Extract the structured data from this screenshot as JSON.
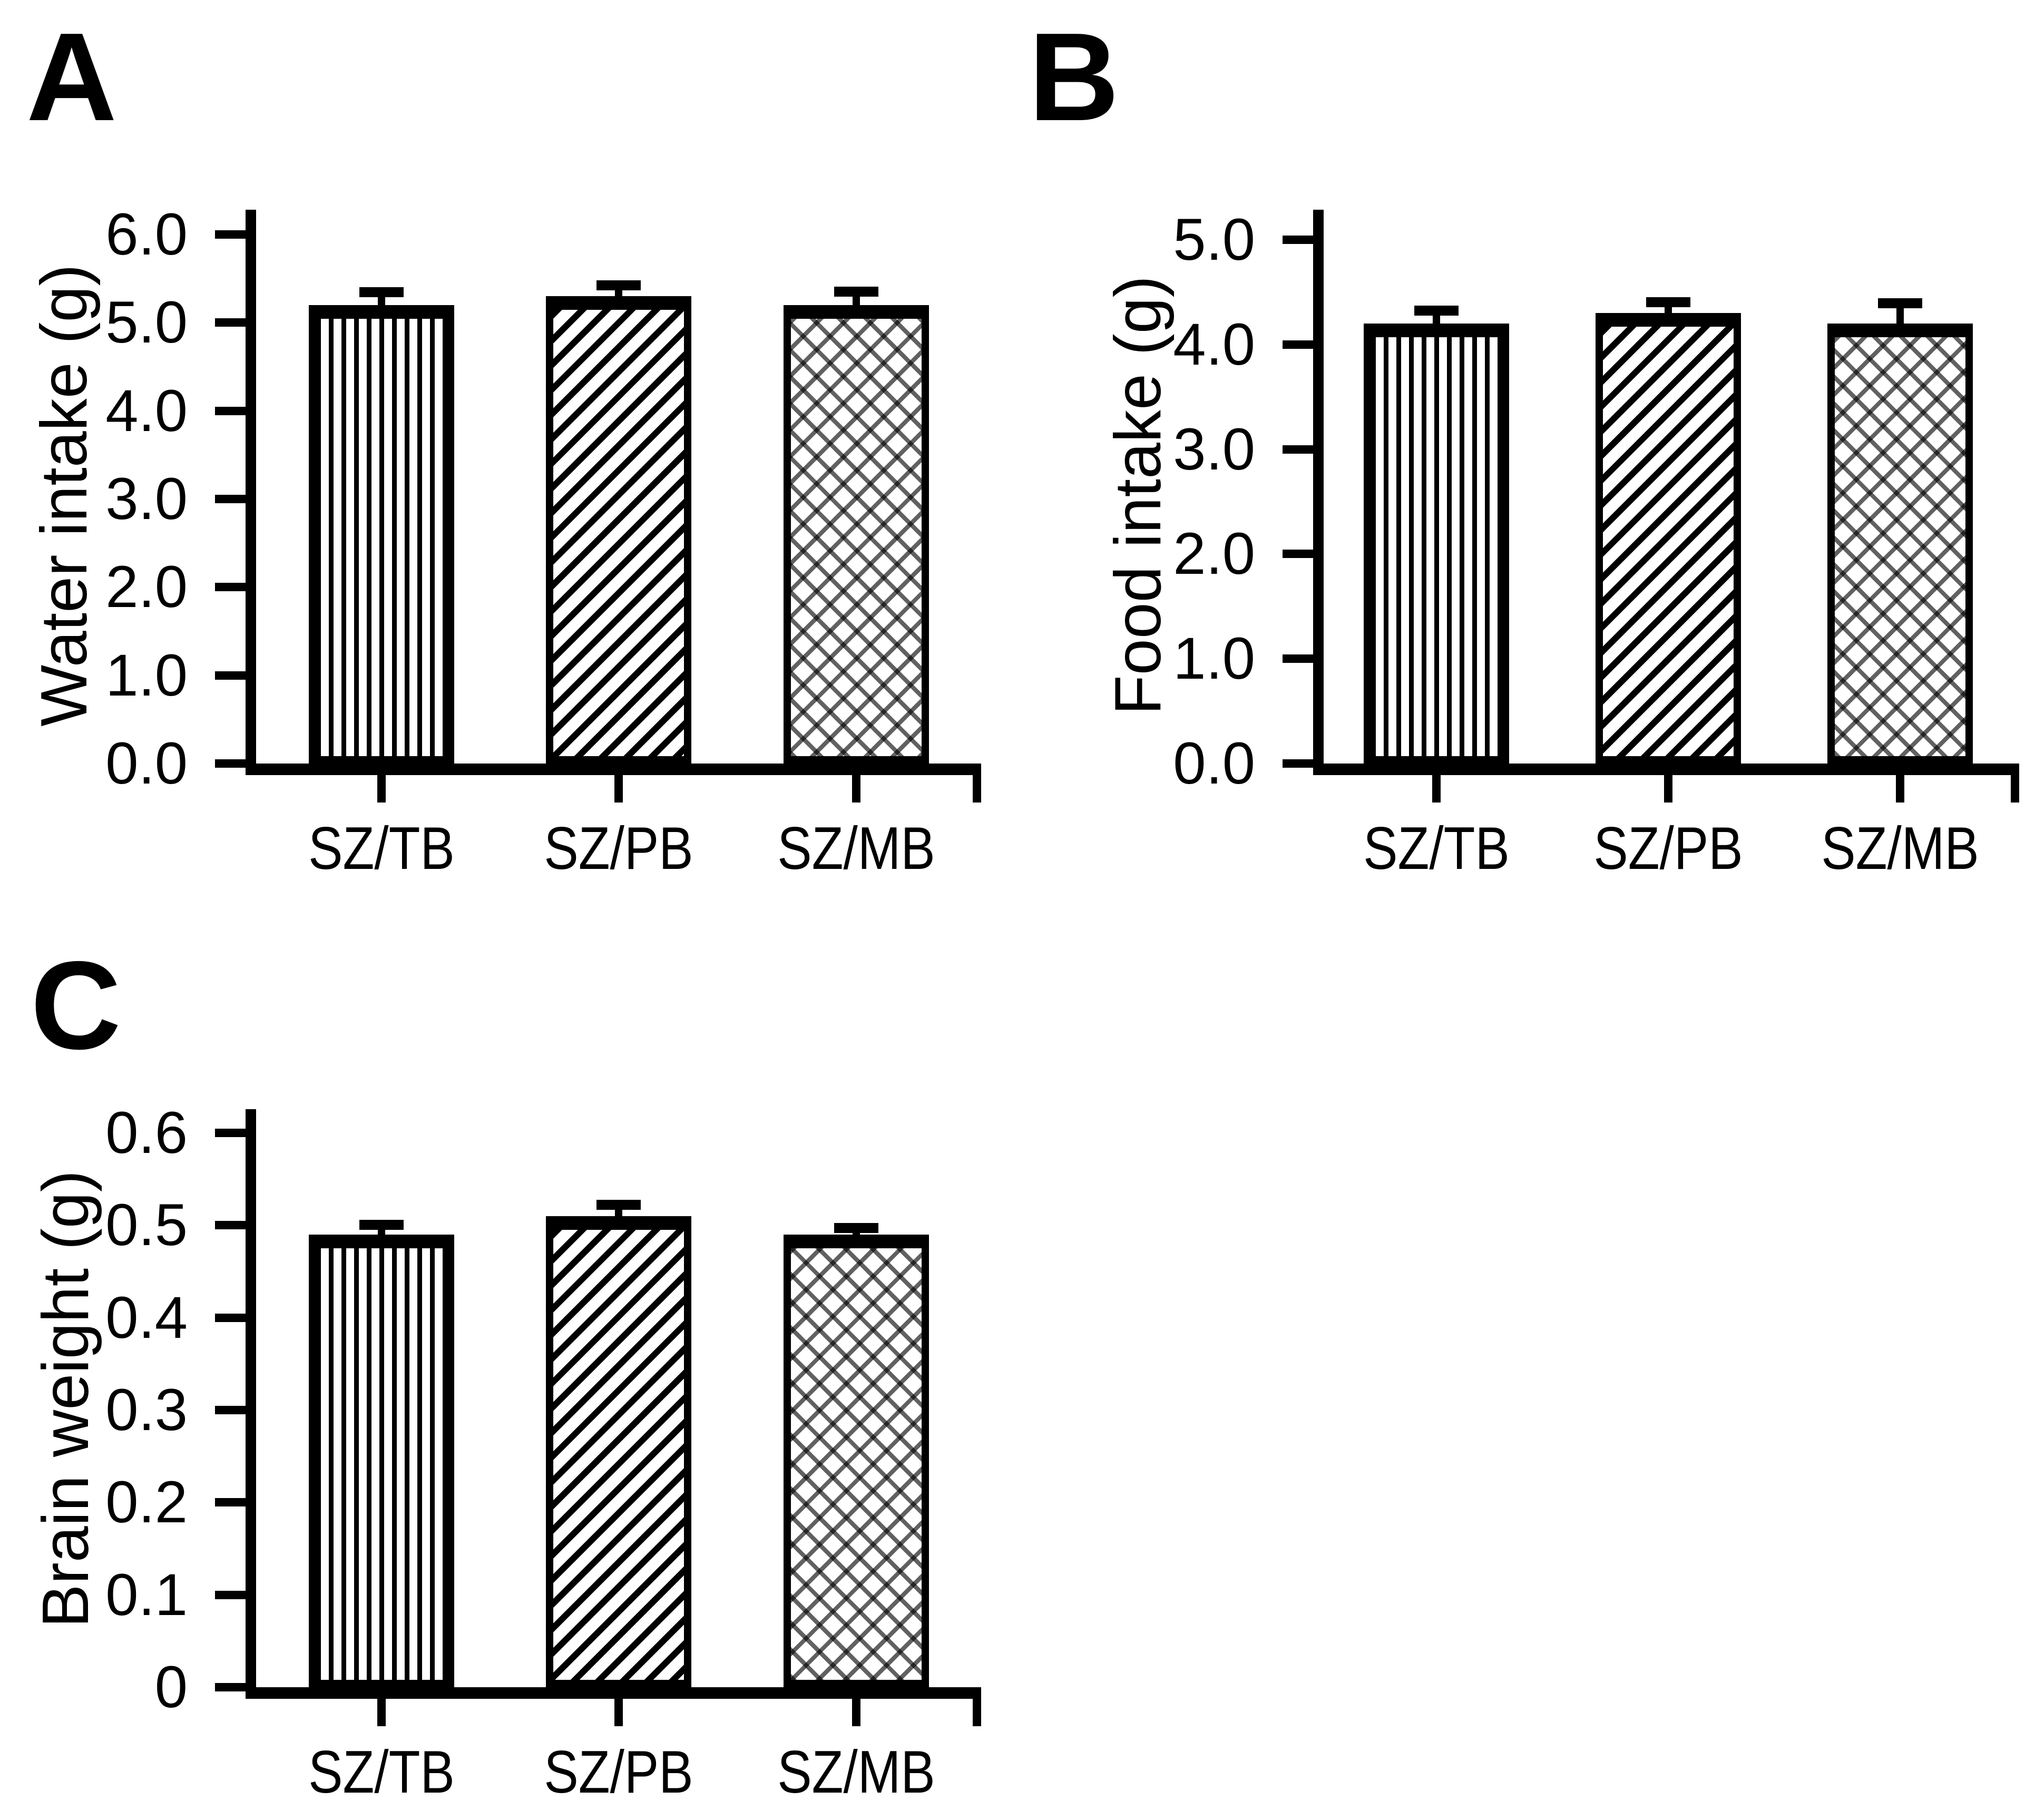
{
  "colors": {
    "ink": "#000000",
    "paper": "#ffffff"
  },
  "panels": [
    {
      "letter": "A",
      "ylabel": "Water intake (g)"
    },
    {
      "letter": "B",
      "ylabel": "Food intake (g)"
    },
    {
      "letter": "C",
      "ylabel": "Brain weight (g)"
    }
  ],
  "chart_data": [
    {
      "type": "bar",
      "panel": "A",
      "title": "",
      "xlabel": "",
      "ylabel": "Water intake (g)",
      "categories": [
        "SZ/TB",
        "SZ/PB",
        "SZ/MB"
      ],
      "values": [
        5.2,
        5.3,
        5.2
      ],
      "errors": [
        0.14,
        0.12,
        0.15
      ],
      "ylim": [
        0,
        6
      ],
      "yticks": [
        {
          "v": 0,
          "label": "0.0"
        },
        {
          "v": 1,
          "label": "1.0"
        },
        {
          "v": 2,
          "label": "2.0"
        },
        {
          "v": 3,
          "label": "3.0"
        },
        {
          "v": 4,
          "label": "4.0"
        },
        {
          "v": 5,
          "label": "5.0"
        },
        {
          "v": 6,
          "label": "6.0"
        }
      ],
      "bar_patterns": [
        "vertical-stripes",
        "diagonal-stripes",
        "crosshatch"
      ],
      "grid": false,
      "legend": "none"
    },
    {
      "type": "bar",
      "panel": "B",
      "title": "",
      "xlabel": "",
      "ylabel": "Food intake (g)",
      "categories": [
        "SZ/TB",
        "SZ/PB",
        "SZ/MB"
      ],
      "values": [
        4.2,
        4.3,
        4.2
      ],
      "errors": [
        0.12,
        0.1,
        0.19
      ],
      "ylim": [
        0,
        5
      ],
      "yticks": [
        {
          "v": 0,
          "label": "0.0"
        },
        {
          "v": 1,
          "label": "1.0"
        },
        {
          "v": 2,
          "label": "2.0"
        },
        {
          "v": 3,
          "label": "3.0"
        },
        {
          "v": 4,
          "label": "4.0"
        },
        {
          "v": 5,
          "label": "5.0"
        }
      ],
      "bar_patterns": [
        "vertical-stripes",
        "diagonal-stripes",
        "crosshatch"
      ],
      "grid": false,
      "legend": "none"
    },
    {
      "type": "bar",
      "panel": "C",
      "title": "",
      "xlabel": "",
      "ylabel": "Brain weight (g)",
      "categories": [
        "SZ/TB",
        "SZ/PB",
        "SZ/MB"
      ],
      "values": [
        0.49,
        0.51,
        0.49
      ],
      "errors": [
        0.01,
        0.012,
        0.007
      ],
      "ylim": [
        0,
        0.6
      ],
      "yticks": [
        {
          "v": 0,
          "label": "0"
        },
        {
          "v": 0.1,
          "label": "0.1"
        },
        {
          "v": 0.2,
          "label": "0.2"
        },
        {
          "v": 0.3,
          "label": "0.3"
        },
        {
          "v": 0.4,
          "label": "0.4"
        },
        {
          "v": 0.5,
          "label": "0.5"
        },
        {
          "v": 0.6,
          "label": "0.6"
        }
      ],
      "bar_patterns": [
        "vertical-stripes",
        "diagonal-stripes",
        "crosshatch"
      ],
      "grid": false,
      "legend": "none"
    }
  ]
}
